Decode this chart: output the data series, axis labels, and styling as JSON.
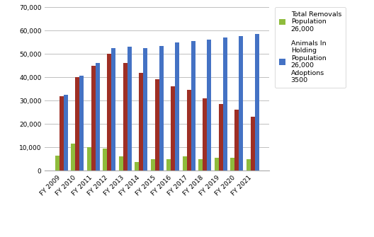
{
  "categories": [
    "FY 2009",
    "FY 2010",
    "FY 2011",
    "FY 2012",
    "FY 2013",
    "FY 2014",
    "FY 2015",
    "FY 2016",
    "FY 2017",
    "FY 2018",
    "FY 2019",
    "FY 2020",
    "FY 2021"
  ],
  "total_removals": [
    6500,
    11500,
    10000,
    9500,
    6000,
    3800,
    5000,
    5000,
    6000,
    5000,
    5500,
    5500,
    5000
  ],
  "holding_7000": [
    32000,
    40000,
    45000,
    50000,
    46000,
    42000,
    39000,
    36000,
    34500,
    31000,
    28500,
    26000,
    23000
  ],
  "holding_3500": [
    32500,
    40500,
    46000,
    52500,
    53000,
    52500,
    53500,
    55000,
    55500,
    56000,
    57000,
    57500,
    58500
  ],
  "color_removals": "#8fbc3c",
  "color_7000": "#9e2f25",
  "color_3500": "#4472c4",
  "legend_label_1": "Total Removals\nPopulation\n26,000",
  "legend_label_2": "Animals In\nHolding\nPopulation\n26,000\nAdoptions\n3500",
  "ylim": [
    0,
    70000
  ],
  "yticks": [
    0,
    10000,
    20000,
    30000,
    40000,
    50000,
    60000,
    70000
  ],
  "background_color": "#ffffff",
  "grid_color": "#c0c0c0",
  "figsize": [
    5.28,
    3.35
  ],
  "dpi": 100
}
